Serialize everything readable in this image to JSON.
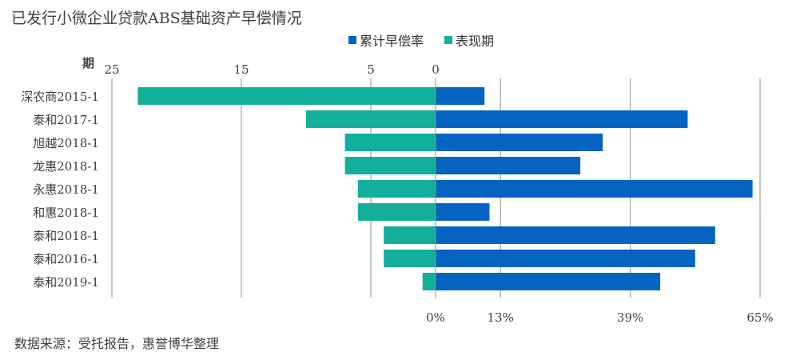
{
  "title": "已发行小微企业贷款ABS基础资产早偿情况",
  "source": "数据来源：受托报告，惠誉博华整理",
  "chart_data": {
    "type": "bar",
    "orientation": "horizontal-butterfly",
    "categories": [
      "深农商2015-1",
      "泰和2017-1",
      "旭越2018-1",
      "龙惠2018-1",
      "永惠2018-1",
      "和惠2018-1",
      "泰和2018-1",
      "泰和2016-1",
      "泰和2019-1"
    ],
    "left_axis": {
      "label": "期",
      "ticks": [
        25,
        15,
        5,
        0
      ],
      "range": [
        0,
        25
      ]
    },
    "right_axis": {
      "ticks": [
        "0%",
        "13%",
        "39%",
        "65%"
      ],
      "tick_values": [
        0,
        13,
        39,
        65
      ],
      "range": [
        0,
        65
      ]
    },
    "series": [
      {
        "name": "累计早偿率",
        "side": "right",
        "unit": "%",
        "color": "#0563C1",
        "values": [
          9.8,
          50.5,
          33.5,
          29,
          63.5,
          10.8,
          56,
          52,
          45
        ]
      },
      {
        "name": "表现期",
        "side": "left",
        "unit": "期",
        "color": "#12B09A",
        "values": [
          23,
          10,
          7,
          7,
          6,
          6,
          4,
          4,
          1
        ]
      }
    ],
    "grid": true,
    "legend_position": "top"
  }
}
